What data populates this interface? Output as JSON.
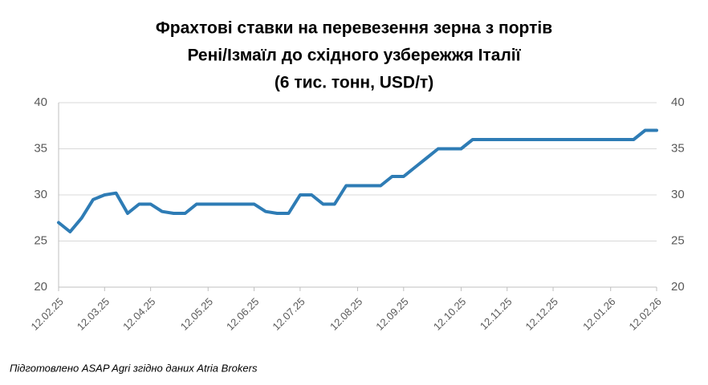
{
  "chart_data": {
    "type": "line",
    "title": [
      "Фрахтові ставки на перевезення зерна з портів",
      "Рені/Ізмаїл до східного узбережжя Італії",
      "(6 тис. тонн, USD/т)"
    ],
    "categories": [
      "12.02.25",
      null,
      null,
      null,
      "12.03.25",
      null,
      null,
      null,
      "12.04.25",
      null,
      null,
      null,
      null,
      "12.05.25",
      null,
      null,
      null,
      "12.06.25",
      null,
      null,
      null,
      "12.07.25",
      null,
      null,
      null,
      null,
      "12.08.25",
      null,
      null,
      null,
      "12.09.25",
      null,
      null,
      null,
      null,
      "12.10.25",
      null,
      null,
      null,
      "12.11.25",
      null,
      null,
      null,
      "12.12.25",
      null,
      null,
      null,
      null,
      "12.01.26",
      null,
      null,
      null,
      "12.02.26"
    ],
    "series": [
      {
        "color": "#2e7cb5",
        "values": [
          27,
          26,
          27.5,
          29.5,
          30,
          30.2,
          28,
          29,
          29,
          28.2,
          28,
          28,
          29,
          29,
          29,
          29,
          29,
          29,
          28.2,
          28,
          28,
          30,
          30,
          29,
          29,
          31,
          31,
          31,
          31,
          32,
          32,
          33,
          34,
          35,
          35,
          35,
          36,
          36,
          36,
          36,
          36,
          36,
          36,
          36,
          36,
          36,
          36,
          36,
          36,
          36,
          36,
          37,
          37
        ]
      }
    ],
    "ylim": [
      20,
      40
    ],
    "yticks": [
      20,
      25,
      30,
      35,
      40
    ],
    "y2lim": [
      20,
      40
    ],
    "y2ticks": [
      20,
      25,
      30,
      35,
      40
    ],
    "grid": true,
    "note": "Підготовлено ASAP Agri згідно даних Atria Brokers"
  }
}
